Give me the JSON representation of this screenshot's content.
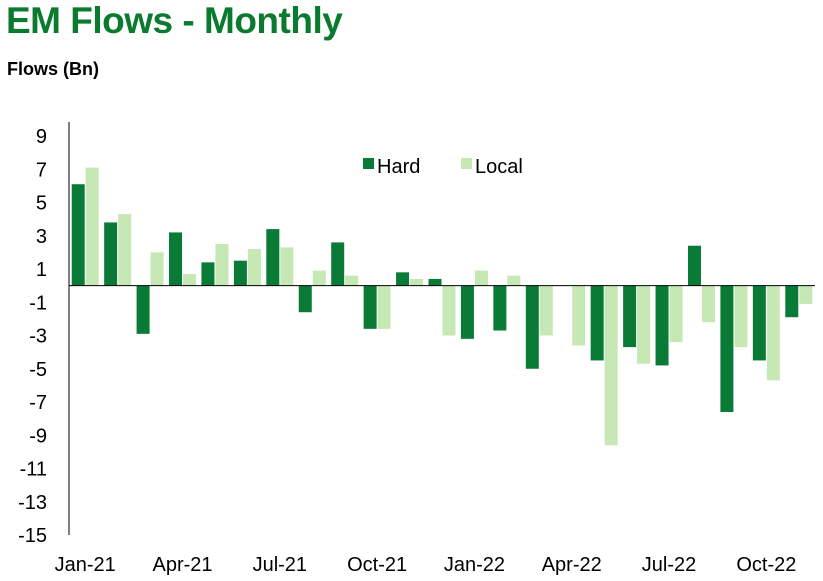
{
  "title": "EM Flows - Monthly",
  "subtitle": "Flows (Bn)",
  "chart_data": {
    "type": "bar",
    "categories": [
      "Jan-21",
      "Feb-21",
      "Mar-21",
      "Apr-21",
      "May-21",
      "Jun-21",
      "Jul-21",
      "Aug-21",
      "Sep-21",
      "Oct-21",
      "Nov-21",
      "Dec-21",
      "Jan-22",
      "Feb-22",
      "Mar-22",
      "Apr-22",
      "May-22",
      "Jun-22",
      "Jul-22",
      "Aug-22",
      "Sep-22",
      "Oct-22",
      "Nov-22"
    ],
    "x_tick_labels": [
      "Jan-21",
      "Apr-21",
      "Jul-21",
      "Oct-21",
      "Jan-22",
      "Apr-22",
      "Jul-22",
      "Oct-22"
    ],
    "series": [
      {
        "name": "Hard",
        "color": "#0a7a37",
        "values": [
          6.1,
          3.8,
          -2.9,
          3.2,
          1.4,
          1.5,
          3.4,
          -1.6,
          2.6,
          -2.6,
          0.8,
          0.4,
          -3.2,
          -2.7,
          -5.0,
          0,
          -4.5,
          -3.7,
          -4.8,
          2.4,
          -7.6,
          -4.5,
          -1.9
        ]
      },
      {
        "name": "Local",
        "color": "#c5e8b4",
        "values": [
          7.1,
          4.3,
          2.0,
          0.7,
          2.5,
          2.2,
          2.3,
          0.9,
          0.6,
          -2.6,
          0.4,
          -3.0,
          0.9,
          0.6,
          -3.0,
          -3.6,
          -9.6,
          -4.7,
          -3.4,
          -2.2,
          -3.7,
          -5.7,
          -1.1
        ]
      }
    ],
    "ylim": [
      -15,
      9
    ],
    "yticks": [
      9,
      7,
      5,
      3,
      1,
      -1,
      -3,
      -5,
      -7,
      -9,
      -11,
      -13,
      -15
    ],
    "legend_position": "top-center",
    "grid": false
  }
}
